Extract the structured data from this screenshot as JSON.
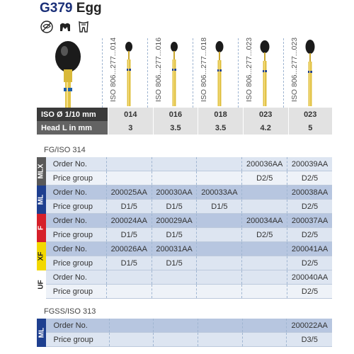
{
  "header": {
    "code": "G379",
    "name": "Egg"
  },
  "usage_icons": [
    "no-sign-icon",
    "crown-icon",
    "tooth-icon"
  ],
  "colors": {
    "mlx": "#595959",
    "ml": "#1e3f8f",
    "f": "#d6202a",
    "xf": "#f2d800",
    "uf": "#ffffff",
    "header_dark": "#4e4e4e"
  },
  "burs": [
    {
      "iso": "ISO 806...277...014",
      "ring": "#1e3f8f"
    },
    {
      "iso": "ISO 806...277...016",
      "ring": "#1e3f8f"
    },
    {
      "iso": "ISO 806...277...018",
      "ring": "#1e3f8f"
    },
    {
      "iso": "ISO 806...277...023",
      "ring": "#1e3f8f"
    },
    {
      "iso": "ISO 806...277...023",
      "ring": "#1e3f8f"
    }
  ],
  "spec": {
    "iso_label": "ISO Ø 1/10 mm",
    "iso_values": [
      "014",
      "016",
      "018",
      "023",
      "023"
    ],
    "head_label": "Head L in mm",
    "head_values": [
      "3",
      "3.5",
      "3.5",
      "4.2",
      "5"
    ]
  },
  "sections": [
    {
      "title": "FG/ISO 314",
      "groups": [
        {
          "tab": "MLX",
          "rows": [
            {
              "label": "Order No.",
              "values": [
                "",
                "",
                "",
                "200036AA",
                "200039AA"
              ]
            },
            {
              "label": "Price group",
              "values": [
                "",
                "",
                "",
                "D2/5",
                "D2/5"
              ]
            }
          ]
        },
        {
          "tab": "ML",
          "rows": [
            {
              "label": "Order No.",
              "values": [
                "200025AA",
                "200030AA",
                "200033AA",
                "",
                "200038AA"
              ]
            },
            {
              "label": "Price group",
              "values": [
                "D1/5",
                "D1/5",
                "D1/5",
                "",
                "D2/5"
              ]
            }
          ]
        },
        {
          "tab": "F",
          "rows": [
            {
              "label": "Order No.",
              "values": [
                "200024AA",
                "200029AA",
                "",
                "200034AA",
                "200037AA"
              ]
            },
            {
              "label": "Price group",
              "values": [
                "D1/5",
                "D1/5",
                "",
                "D2/5",
                "D2/5"
              ]
            }
          ]
        },
        {
          "tab": "XF",
          "rows": [
            {
              "label": "Order No.",
              "values": [
                "200026AA",
                "200031AA",
                "",
                "",
                "200041AA"
              ]
            },
            {
              "label": "Price group",
              "values": [
                "D1/5",
                "D1/5",
                "",
                "",
                "D2/5"
              ]
            }
          ]
        },
        {
          "tab": "UF",
          "rows": [
            {
              "label": "Order No.",
              "values": [
                "",
                "",
                "",
                "",
                "200040AA"
              ]
            },
            {
              "label": "Price group",
              "values": [
                "",
                "",
                "",
                "",
                "D2/5"
              ]
            }
          ]
        }
      ]
    },
    {
      "title": "FGSS/ISO 313",
      "groups": [
        {
          "tab": "ML",
          "rows": [
            {
              "label": "Order No.",
              "values": [
                "",
                "",
                "",
                "",
                "200022AA"
              ]
            },
            {
              "label": "Price group",
              "values": [
                "",
                "",
                "",
                "",
                "D3/5"
              ]
            }
          ]
        }
      ]
    }
  ]
}
